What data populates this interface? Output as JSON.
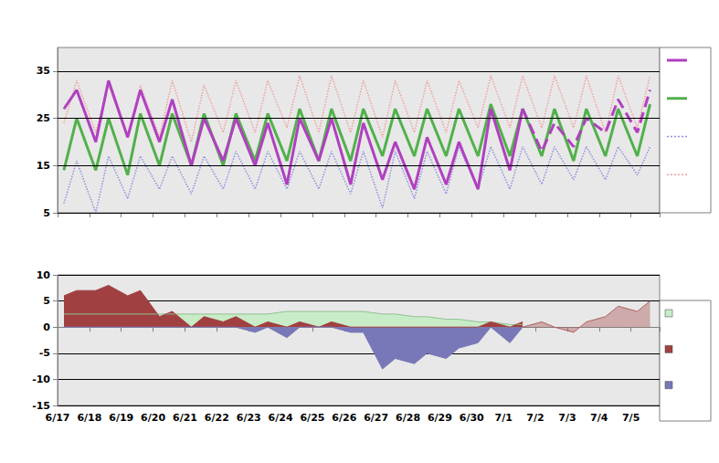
{
  "chart_data": [
    {
      "type": "line",
      "x": [
        0.2,
        0.6,
        1.2,
        1.6,
        2.2,
        2.6,
        3.2,
        3.6,
        4.2,
        4.6,
        5.2,
        5.6,
        6.2,
        6.6,
        7.2,
        7.6,
        8.2,
        8.6,
        9.2,
        9.6,
        10.2,
        10.6,
        11.2,
        11.6,
        12.2,
        12.6,
        13.2,
        13.6,
        14.2,
        14.6,
        15.2,
        15.6,
        16.2,
        16.6,
        17.2,
        17.6,
        18.2,
        18.6
      ],
      "xlim": [
        0,
        18.9
      ],
      "xticks": [
        {
          "value": 0,
          "label": "6/17"
        },
        {
          "value": 1,
          "label": "6/18"
        },
        {
          "value": 2,
          "label": "6/19"
        },
        {
          "value": 3,
          "label": "6/20"
        },
        {
          "value": 4,
          "label": "6/21"
        },
        {
          "value": 5,
          "label": "6/22"
        },
        {
          "value": 6,
          "label": "6/23"
        },
        {
          "value": 7,
          "label": "6/24"
        },
        {
          "value": 8,
          "label": "6/25"
        },
        {
          "value": 9,
          "label": "6/26"
        },
        {
          "value": 10,
          "label": "6/27"
        },
        {
          "value": 11,
          "label": "6/28"
        },
        {
          "value": 12,
          "label": "6/29"
        },
        {
          "value": 13,
          "label": "6/30"
        },
        {
          "value": 14,
          "label": "7/1"
        },
        {
          "value": 15,
          "label": "7/2"
        },
        {
          "value": 16,
          "label": "7/3"
        },
        {
          "value": 17,
          "label": "7/4"
        },
        {
          "value": 18,
          "label": "7/5"
        }
      ],
      "ylim": [
        5,
        40
      ],
      "yticks": [
        5,
        15,
        25,
        35
      ],
      "grid": true,
      "tick_labels": "y",
      "series": [
        {
          "color": "#f0a0a0",
          "line_style": "dotted",
          "values": [
            24,
            33,
            22,
            32,
            21,
            32,
            21,
            33,
            20,
            32,
            22,
            33,
            22,
            33,
            23,
            34,
            22,
            34,
            22,
            33,
            21,
            33,
            22,
            33,
            22,
            33,
            23,
            34,
            23,
            34,
            23,
            34,
            23,
            34,
            22,
            34,
            23,
            34
          ]
        },
        {
          "color": "#9090e0",
          "line_style": "dotted",
          "values": [
            7,
            16,
            5,
            17,
            8,
            17,
            10,
            17,
            9,
            17,
            10,
            18,
            10,
            18,
            10,
            18,
            10,
            18,
            9,
            18,
            6,
            18,
            8,
            18,
            9,
            19,
            10,
            19,
            10,
            19,
            11,
            19,
            12,
            19,
            12,
            19,
            13,
            19
          ]
        },
        {
          "color": "#52b04c",
          "line_style": "solid",
          "values": [
            14,
            25,
            14,
            25,
            13,
            26,
            15,
            26,
            15,
            26,
            15,
            26,
            16,
            26,
            16,
            27,
            16,
            27,
            16,
            27,
            17,
            27,
            17,
            27,
            17,
            27,
            17,
            28,
            17,
            27,
            17,
            27,
            16,
            27,
            17,
            27,
            17,
            28
          ]
        },
        {
          "color": "#b040c0",
          "line_style": "solid",
          "values": [
            27,
            31,
            20,
            33,
            21,
            31,
            20,
            29,
            15,
            25,
            16,
            25,
            15,
            24,
            11,
            25,
            16,
            25,
            11,
            24,
            12,
            20,
            10,
            21,
            11,
            20,
            10,
            27,
            14,
            27,
            null,
            null,
            null,
            null,
            null,
            null,
            null,
            null
          ]
        },
        {
          "color": "#b040c0",
          "line_style": "dashed",
          "values": [
            null,
            null,
            null,
            null,
            null,
            null,
            null,
            null,
            null,
            null,
            null,
            null,
            null,
            null,
            null,
            null,
            null,
            null,
            null,
            null,
            null,
            null,
            null,
            null,
            null,
            null,
            null,
            null,
            null,
            27,
            18,
            24,
            19,
            25,
            22,
            29,
            22,
            31
          ]
        }
      ]
    },
    {
      "type": "area",
      "x": [
        0.2,
        0.6,
        1.2,
        1.6,
        2.2,
        2.6,
        3.2,
        3.6,
        4.2,
        4.6,
        5.2,
        5.6,
        6.2,
        6.6,
        7.2,
        7.6,
        8.2,
        8.6,
        9.2,
        9.6,
        10.2,
        10.6,
        11.2,
        11.6,
        12.2,
        12.6,
        13.2,
        13.6,
        14.2,
        14.6,
        15.2,
        15.6,
        16.2,
        16.6,
        17.2,
        17.6,
        18.2,
        18.6
      ],
      "xlim": [
        0,
        18.9
      ],
      "xticks": [
        {
          "value": 0,
          "label": "6/17"
        },
        {
          "value": 1,
          "label": "6/18"
        },
        {
          "value": 2,
          "label": "6/19"
        },
        {
          "value": 3,
          "label": "6/20"
        },
        {
          "value": 4,
          "label": "6/21"
        },
        {
          "value": 5,
          "label": "6/22"
        },
        {
          "value": 6,
          "label": "6/23"
        },
        {
          "value": 7,
          "label": "6/24"
        },
        {
          "value": 8,
          "label": "6/25"
        },
        {
          "value": 9,
          "label": "6/26"
        },
        {
          "value": 10,
          "label": "6/27"
        },
        {
          "value": 11,
          "label": "6/28"
        },
        {
          "value": 12,
          "label": "6/29"
        },
        {
          "value": 13,
          "label": "6/30"
        },
        {
          "value": 14,
          "label": "7/1"
        },
        {
          "value": 15,
          "label": "7/2"
        },
        {
          "value": 16,
          "label": "7/3"
        },
        {
          "value": 17,
          "label": "7/4"
        },
        {
          "value": 18,
          "label": "7/5"
        }
      ],
      "ylim": [
        -15,
        10
      ],
      "yticks": [
        -15,
        -10,
        -5,
        0,
        5,
        10
      ],
      "grid": true,
      "series": [
        {
          "color": "#c8ecc8",
          "line_style": "solid",
          "values": [
            2.5,
            2.5,
            2.5,
            2.5,
            2.5,
            2.5,
            2.5,
            2.5,
            2.5,
            2.5,
            2.5,
            2.5,
            2.5,
            2.5,
            3,
            3,
            3,
            3,
            3,
            3,
            2.5,
            2.5,
            2,
            2,
            1.5,
            1.5,
            1,
            1,
            0.5,
            0.5,
            null,
            null,
            null,
            null,
            null,
            null,
            null,
            null
          ]
        },
        {
          "color": "#a04040",
          "line_style": "solid",
          "values": [
            6,
            7,
            7,
            8,
            6,
            7,
            2,
            3,
            0,
            2,
            1,
            2,
            0,
            1,
            0,
            1,
            0,
            1,
            0,
            0,
            0,
            0,
            0,
            0,
            0,
            0,
            0,
            1,
            0,
            1,
            null,
            null,
            null,
            null,
            null,
            null,
            null,
            null
          ]
        },
        {
          "color": "#7878b8",
          "line_style": "solid",
          "values": [
            0,
            0,
            0,
            0,
            0,
            0,
            0,
            0,
            0,
            0,
            0,
            0,
            -1,
            0,
            -2,
            0,
            0,
            0,
            -1,
            -1,
            -8,
            -6,
            -7,
            -5,
            -6,
            -4,
            -3,
            0,
            -3,
            0,
            null,
            null,
            null,
            null,
            null,
            null,
            null,
            null
          ]
        },
        {
          "color": "#b06060",
          "line_style": "dashed",
          "values": [
            null,
            null,
            null,
            null,
            null,
            null,
            null,
            null,
            null,
            null,
            null,
            null,
            null,
            null,
            null,
            null,
            null,
            null,
            null,
            null,
            null,
            null,
            null,
            null,
            null,
            null,
            null,
            null,
            null,
            0,
            1,
            0,
            -1,
            1,
            2,
            4,
            3,
            5
          ]
        }
      ]
    }
  ]
}
